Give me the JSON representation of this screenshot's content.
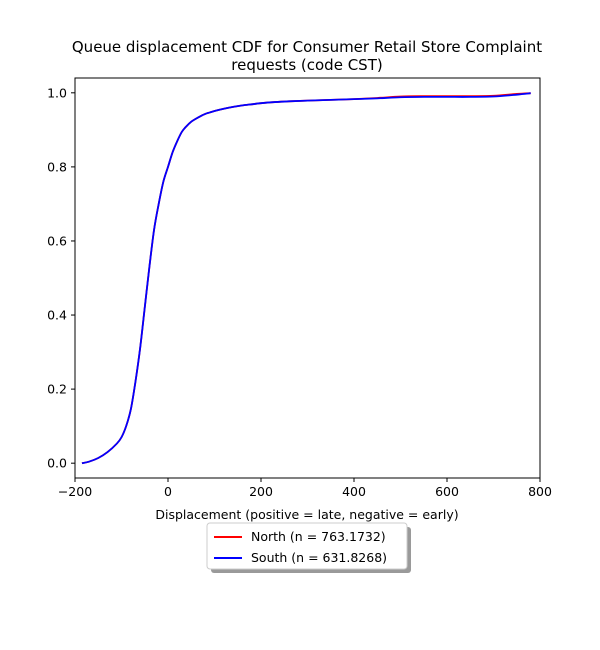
{
  "chart_data": {
    "type": "line",
    "title_lines": [
      "Queue displacement CDF for Consumer Retail Store Complaint",
      "requests (code CST)"
    ],
    "xlabel": "Displacement (positive = late, negative = early)",
    "ylabel": "",
    "xlim": [
      -200,
      800
    ],
    "ylim": [
      -0.04,
      1.04
    ],
    "xticks": [
      -200,
      0,
      200,
      400,
      600,
      800
    ],
    "xtick_labels": [
      "−200",
      "0",
      "200",
      "400",
      "600",
      "800"
    ],
    "yticks": [
      0.0,
      0.2,
      0.4,
      0.6,
      0.8,
      1.0
    ],
    "ytick_labels": [
      "0.0",
      "0.2",
      "0.4",
      "0.6",
      "0.8",
      "1.0"
    ],
    "grid": false,
    "legend_placement": "below-center",
    "series": [
      {
        "name": "North (n = 763.1732)",
        "color": "#ff0000",
        "x": [
          -185,
          -170,
          -150,
          -130,
          -110,
          -100,
          -90,
          -80,
          -70,
          -60,
          -50,
          -40,
          -30,
          -20,
          -10,
          0,
          10,
          20,
          30,
          40,
          50,
          60,
          70,
          80,
          90,
          100,
          120,
          140,
          160,
          180,
          200,
          230,
          260,
          300,
          350,
          400,
          450,
          500,
          550,
          600,
          650,
          700,
          750,
          780
        ],
        "y": [
          0.0,
          0.004,
          0.014,
          0.03,
          0.053,
          0.07,
          0.1,
          0.145,
          0.22,
          0.31,
          0.42,
          0.53,
          0.63,
          0.7,
          0.76,
          0.8,
          0.84,
          0.87,
          0.895,
          0.91,
          0.922,
          0.93,
          0.937,
          0.943,
          0.947,
          0.951,
          0.957,
          0.962,
          0.966,
          0.969,
          0.972,
          0.975,
          0.977,
          0.979,
          0.981,
          0.983,
          0.986,
          0.99,
          0.991,
          0.991,
          0.991,
          0.992,
          0.997,
          0.999
        ]
      },
      {
        "name": "South (n = 631.8268)",
        "color": "#0000ff",
        "x": [
          -185,
          -170,
          -150,
          -130,
          -110,
          -100,
          -90,
          -80,
          -70,
          -60,
          -50,
          -40,
          -30,
          -20,
          -10,
          0,
          10,
          20,
          30,
          40,
          50,
          60,
          70,
          80,
          90,
          100,
          120,
          140,
          160,
          180,
          200,
          230,
          260,
          300,
          350,
          400,
          450,
          500,
          550,
          600,
          650,
          700,
          750,
          780
        ],
        "y": [
          0.0,
          0.004,
          0.014,
          0.03,
          0.053,
          0.07,
          0.1,
          0.145,
          0.22,
          0.31,
          0.42,
          0.53,
          0.63,
          0.7,
          0.76,
          0.8,
          0.84,
          0.87,
          0.895,
          0.91,
          0.922,
          0.93,
          0.937,
          0.943,
          0.947,
          0.951,
          0.957,
          0.962,
          0.966,
          0.969,
          0.972,
          0.975,
          0.977,
          0.979,
          0.981,
          0.983,
          0.985,
          0.988,
          0.989,
          0.989,
          0.989,
          0.99,
          0.995,
          0.999
        ]
      }
    ]
  }
}
